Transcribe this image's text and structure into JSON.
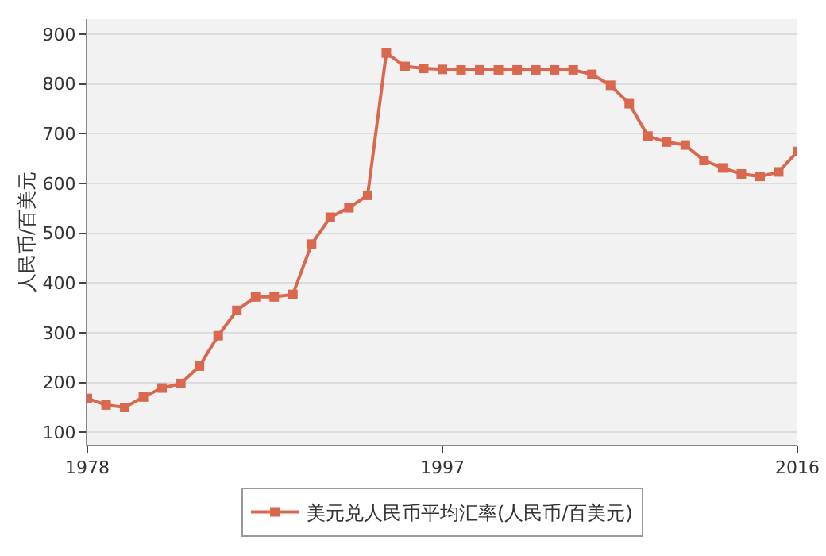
{
  "chart_data": {
    "type": "line",
    "ylabel": "人民币/百美元",
    "x": [
      1978,
      1979,
      1980,
      1981,
      1982,
      1983,
      1984,
      1985,
      1986,
      1987,
      1988,
      1989,
      1990,
      1991,
      1992,
      1993,
      1994,
      1995,
      1996,
      1997,
      1998,
      1999,
      2000,
      2001,
      2002,
      2003,
      2004,
      2005,
      2006,
      2007,
      2008,
      2009,
      2010,
      2011,
      2012,
      2013,
      2014,
      2015,
      2016
    ],
    "series": [
      {
        "name": "美元兑人民币平均汇率(人民币/百美元)",
        "color": "#d9684f",
        "values": [
          168,
          155,
          150,
          171,
          189,
          198,
          233,
          294,
          345,
          372,
          372,
          377,
          478,
          532,
          551,
          576,
          862,
          835,
          831,
          829,
          828,
          828,
          828,
          828,
          828,
          828,
          828,
          819,
          797,
          760,
          695,
          683,
          677,
          646,
          631,
          619,
          614,
          623,
          664
        ]
      }
    ],
    "xlim": [
      1978,
      2016
    ],
    "xticks": [
      1978,
      1997,
      2016
    ],
    "ylim": [
      75,
      930
    ],
    "yticks": [
      100,
      200,
      300,
      400,
      500,
      600,
      700,
      800,
      900
    ],
    "grid": "y",
    "legend": "bottom",
    "marker": "square",
    "line_style": "solid"
  }
}
